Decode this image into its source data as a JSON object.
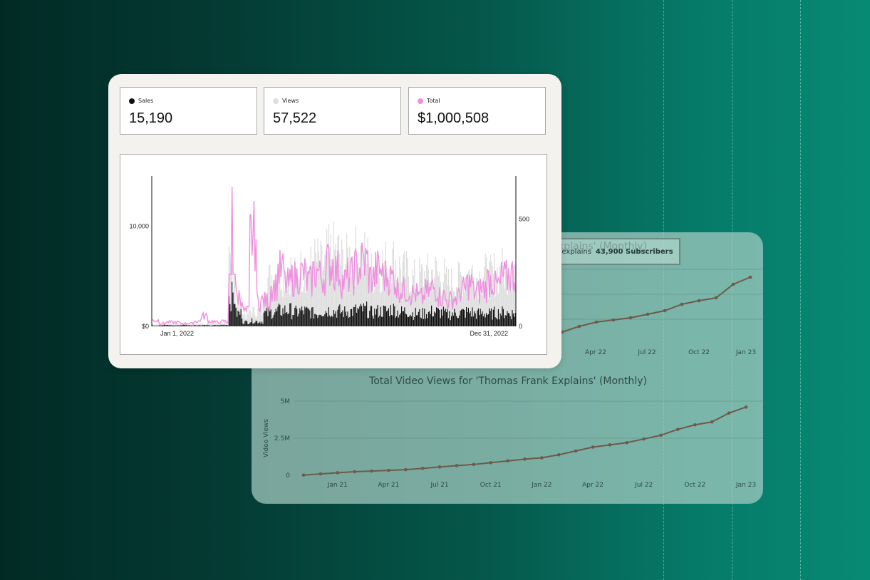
{
  "background_panel": {
    "partial_title": "xplains' (Monthly)",
    "badge_channel": "kexplains",
    "badge_subscribers": "43,900 Subscribers",
    "chart_data": [
      {
        "type": "line",
        "title": "",
        "x_ticks": [
          "Apr 22",
          "Jul 22",
          "Oct 22",
          "Jan 23"
        ],
        "series": [
          {
            "color": "#6e5a4a",
            "values": [
              0.45,
              0.53,
              0.59,
              0.62,
              0.65,
              0.7,
              0.75,
              0.84,
              0.89,
              0.93,
              1.12,
              1.22
            ]
          }
        ],
        "note": "values are in unlabeled relative units; y axis labels hidden behind foreground card",
        "grid": true
      },
      {
        "type": "line",
        "title": "Total Video Views for 'Thomas Frank Explains' (Monthly)",
        "ylabel": "Video Views",
        "y_ticks": [
          "5M",
          "2.5M",
          "0"
        ],
        "ylim": [
          0,
          5000000
        ],
        "x_ticks": [
          "Jan 21",
          "Apr 21",
          "Jul 21",
          "Oct 21",
          "Jan 22",
          "Apr 22",
          "Jul 22",
          "Oct 22",
          "Jan 23"
        ],
        "x": [
          "Nov 20",
          "Dec 20",
          "Jan 21",
          "Feb 21",
          "Mar 21",
          "Apr 21",
          "May 21",
          "Jun 21",
          "Jul 21",
          "Aug 21",
          "Sep 21",
          "Oct 21",
          "Nov 21",
          "Dec 21",
          "Jan 22",
          "Feb 22",
          "Mar 22",
          "Apr 22",
          "May 22",
          "Jun 22",
          "Jul 22",
          "Aug 22",
          "Sep 22",
          "Oct 22",
          "Nov 22",
          "Dec 22",
          "Jan 23"
        ],
        "series": [
          {
            "color": "#6e5a4a",
            "values": [
              10000,
              90000,
              170000,
              240000,
              280000,
              330000,
              380000,
              460000,
              560000,
              650000,
              730000,
              850000,
              970000,
              1090000,
              1180000,
              1380000,
              1640000,
              1900000,
              2050000,
              2200000,
              2450000,
              2700000,
              3100000,
              3400000,
              3600000,
              4200000,
              4600000
            ]
          }
        ],
        "grid": true
      }
    ]
  },
  "stats": [
    {
      "label": "Sales",
      "value": "15,190",
      "color": "#111111"
    },
    {
      "label": "Views",
      "value": "57,522",
      "color": "#dedede"
    },
    {
      "label": "Total",
      "value": "$1,000,508",
      "color": "#f08fe0"
    }
  ],
  "chart_data": {
    "type": "bar",
    "title": "",
    "x_start_label": "Jan 1, 2022",
    "x_end_label": "Dec 31, 2022",
    "left_axis": {
      "ticks": [
        "$0",
        "10,000"
      ],
      "ylim": [
        0,
        15000
      ]
    },
    "right_axis": {
      "ticks": [
        "0",
        "500"
      ],
      "ylim": [
        0,
        700
      ]
    },
    "series": [
      {
        "name": "Sales",
        "kind": "bar",
        "color": "#111111",
        "axis": "right",
        "weekly_avg": [
          4,
          6,
          5,
          4,
          6,
          5,
          5,
          5,
          4,
          5,
          7,
          140,
          60,
          20,
          25,
          22,
          60,
          65,
          72,
          75,
          65,
          70,
          68,
          60,
          72,
          75,
          70,
          66,
          70,
          74,
          78,
          64,
          70,
          72,
          80,
          66,
          70,
          60,
          58,
          62,
          68,
          64,
          56,
          60,
          64,
          66,
          58,
          62,
          58,
          62,
          64,
          60
        ]
      },
      {
        "name": "Views",
        "kind": "bar",
        "color": "#dedede",
        "axis": "right",
        "weekly_avg": [
          10,
          12,
          10,
          10,
          12,
          10,
          12,
          12,
          12,
          14,
          16,
          280,
          110,
          60,
          70,
          70,
          220,
          240,
          250,
          260,
          230,
          260,
          270,
          300,
          280,
          330,
          340,
          300,
          320,
          330,
          320,
          250,
          270,
          290,
          300,
          270,
          250,
          220,
          230,
          240,
          250,
          230,
          200,
          210,
          230,
          250,
          230,
          240,
          230,
          250,
          260,
          280
        ]
      },
      {
        "name": "Total",
        "kind": "line",
        "color": "#f08fe0",
        "axis": "left",
        "weekly_avg": [
          600,
          300,
          400,
          400,
          300,
          300,
          500,
          1000,
          500,
          400,
          500,
          14800,
          3000,
          1500,
          9000,
          2500,
          2500,
          4000,
          5500,
          4200,
          4800,
          5200,
          4400,
          5400,
          5000,
          6200,
          5600,
          4500,
          5000,
          5800,
          6400,
          4800,
          5600,
          5000,
          4800,
          3800,
          3600,
          3200,
          2800,
          3400,
          3800,
          3000,
          2600,
          2800,
          3600,
          4200,
          3400,
          3800,
          4600,
          4000,
          4800,
          5200
        ]
      }
    ],
    "grid": false,
    "legend": "top"
  }
}
